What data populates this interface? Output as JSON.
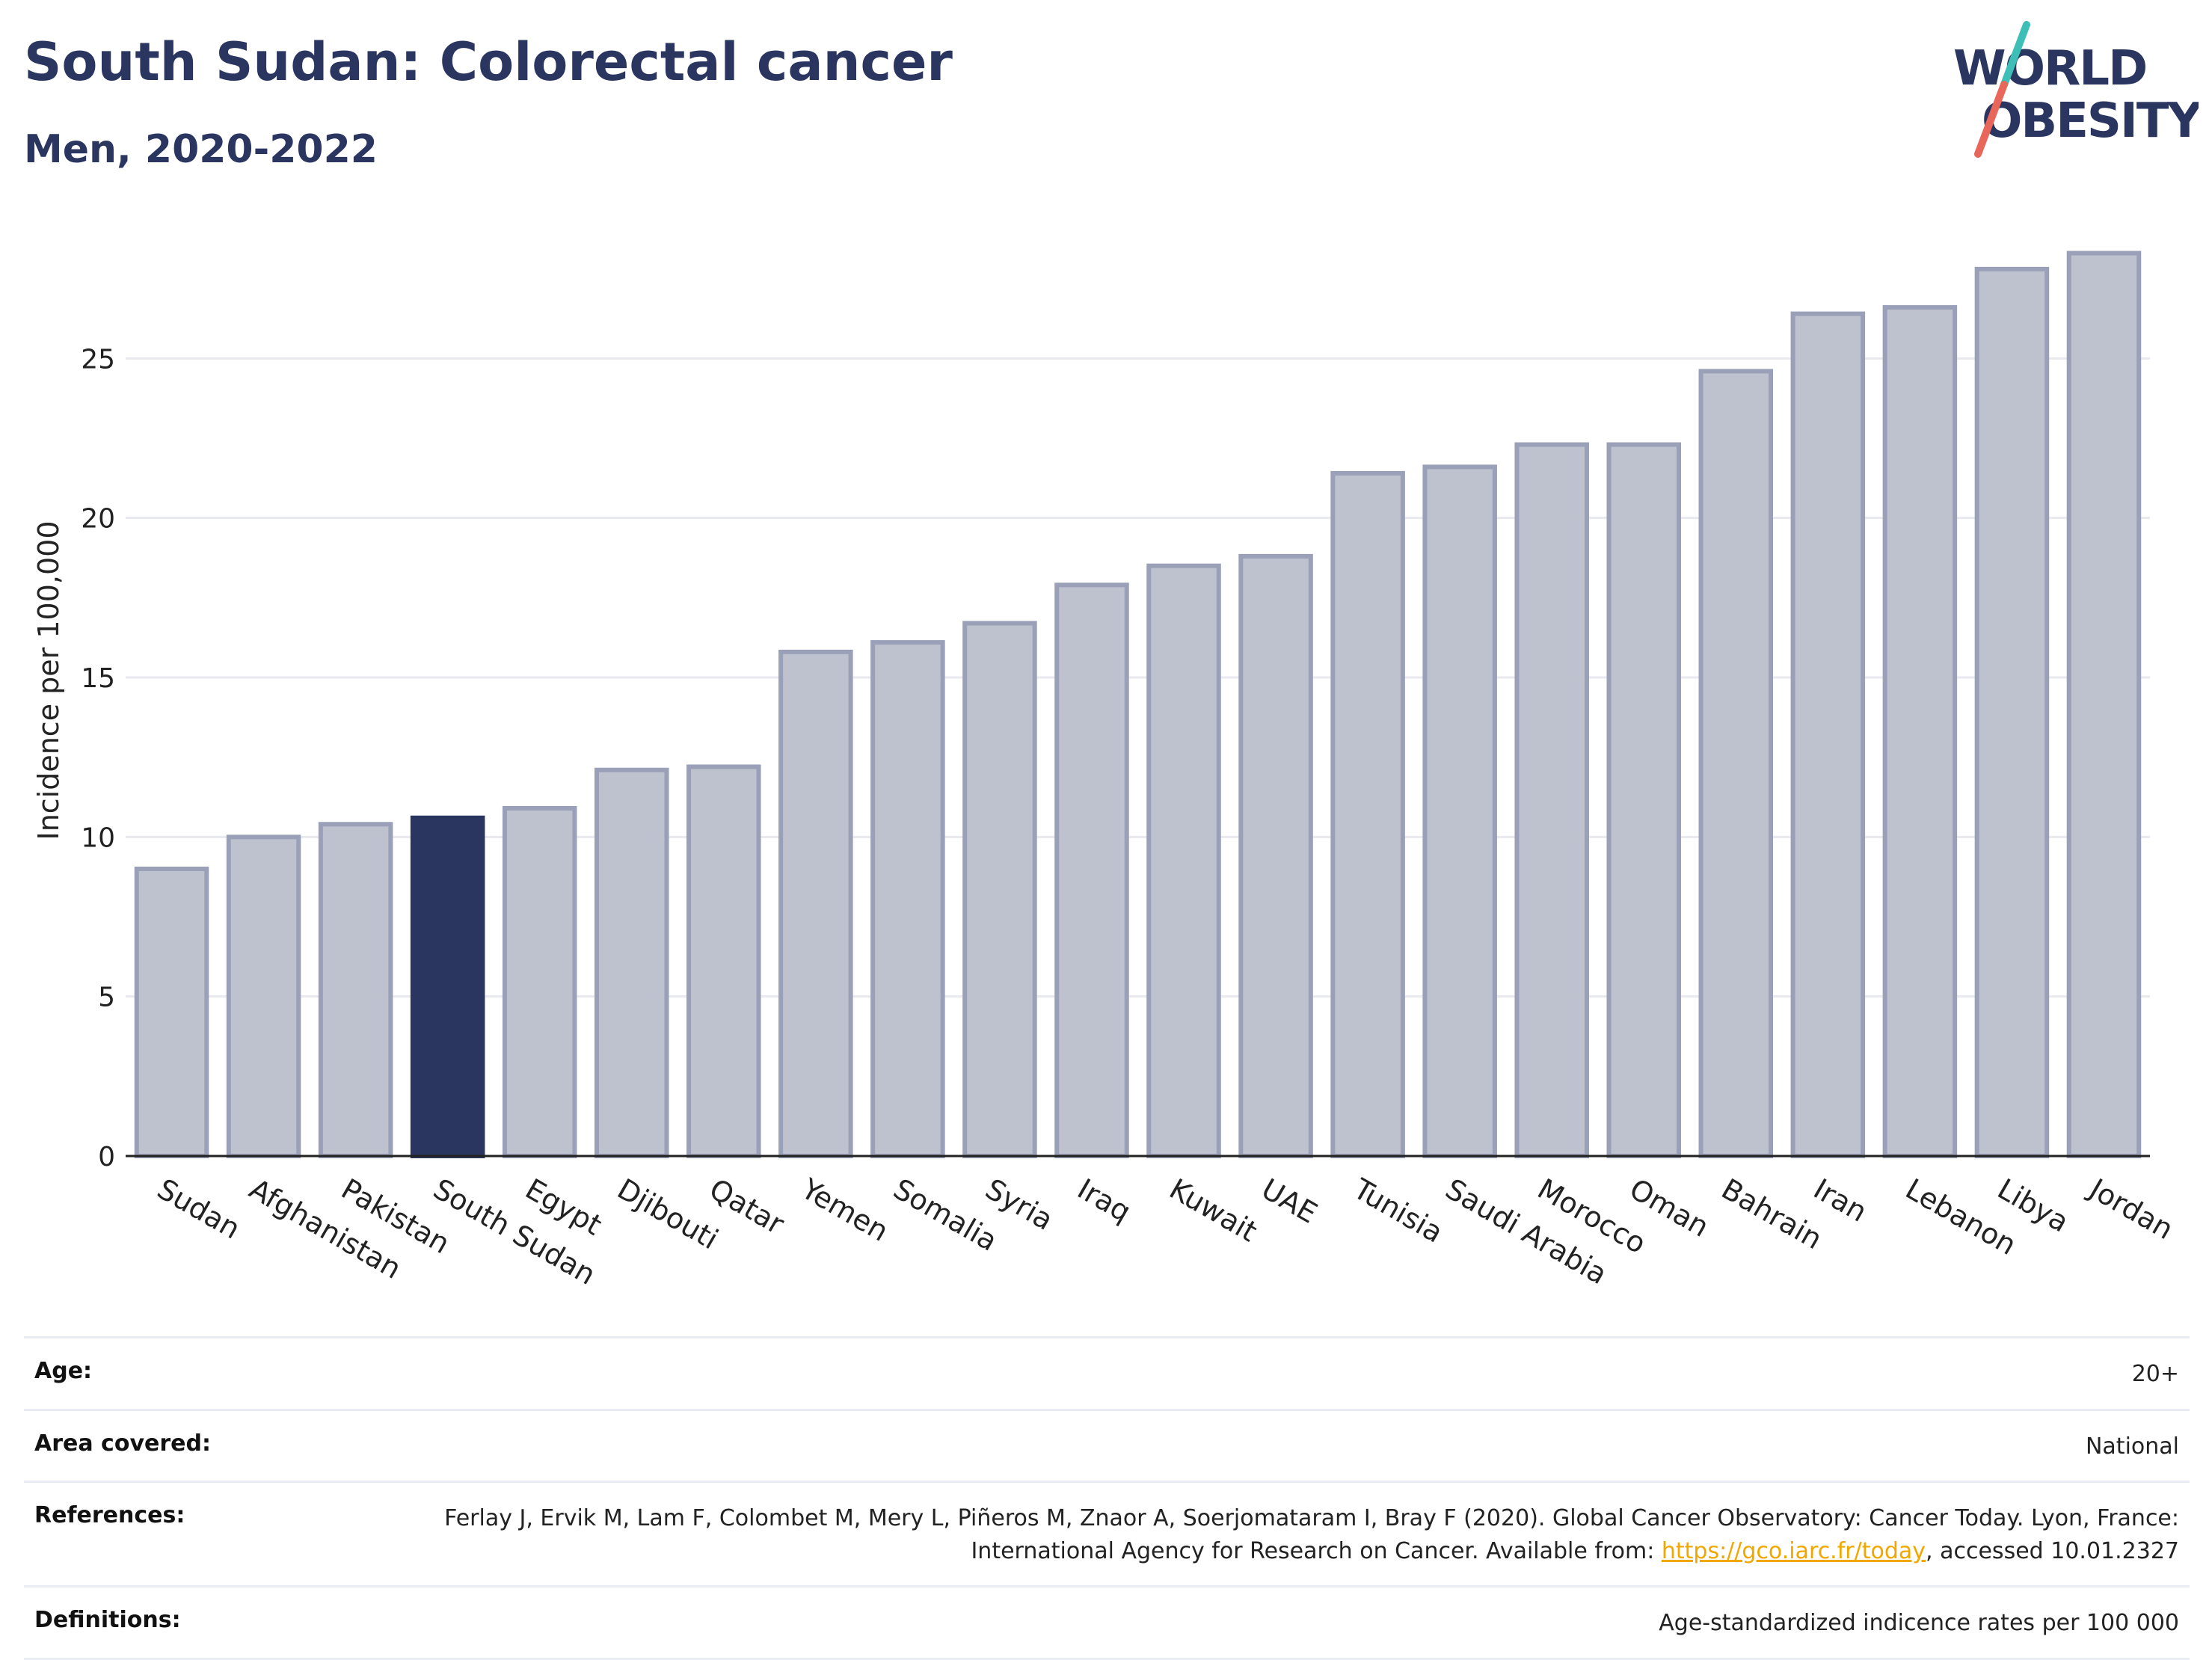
{
  "header": {
    "title": "South Sudan: Colorectal cancer",
    "subtitle": "Men, 2020-2022"
  },
  "logo": {
    "line1": "WORLD",
    "line2": "OBESITY",
    "text_color": "#2a3560",
    "slash_top_color": "#3dbfb8",
    "slash_bottom_color": "#e8665a"
  },
  "colors": {
    "bar_default": "#bec1ce",
    "bar_default_stroke": "#9aa0b7",
    "bar_highlight": "#2a3560",
    "grid": "#e8eaf0",
    "axis": "#222222"
  },
  "chart_data": {
    "type": "bar",
    "categories": [
      "Sudan",
      "Afghanistan",
      "Pakistan",
      "South Sudan",
      "Egypt",
      "Djibouti",
      "Qatar",
      "Yemen",
      "Somalia",
      "Syria",
      "Iraq",
      "Kuwait",
      "UAE",
      "Tunisia",
      "Saudi Arabia",
      "Morocco",
      "Oman",
      "Bahrain",
      "Iran",
      "Lebanon",
      "Libya",
      "Jordan"
    ],
    "values": [
      9.0,
      10.0,
      10.4,
      10.6,
      10.9,
      12.1,
      12.2,
      15.8,
      16.1,
      16.7,
      17.9,
      18.5,
      18.8,
      21.4,
      21.6,
      22.3,
      22.3,
      24.6,
      26.4,
      26.6,
      27.8,
      28.3
    ],
    "highlight": "South Sudan",
    "ylabel": "Incidence per 100,000",
    "xlabel": "",
    "yticks": [
      0,
      5,
      10,
      15,
      20,
      25
    ],
    "ylim": [
      0,
      28.5
    ],
    "grid": true
  },
  "meta": {
    "age_label": "Age:",
    "age_value": "20+",
    "area_label": "Area covered:",
    "area_value": "National",
    "references_label": "References:",
    "references_text_1": "Ferlay J, Ervik M, Lam F, Colombet M, Mery L, Piñeros M, Znaor A, Soerjomataram I, Bray F (2020). Global Cancer Observatory: Cancer Today. Lyon, France: International Agency for Research on Cancer. Available from: ",
    "references_link": "https://gco.iarc.fr/today",
    "references_text_2": ", accessed 10.01.2327",
    "definitions_label": "Definitions:",
    "definitions_value": "Age-standardized indicence rates per 100 000"
  }
}
